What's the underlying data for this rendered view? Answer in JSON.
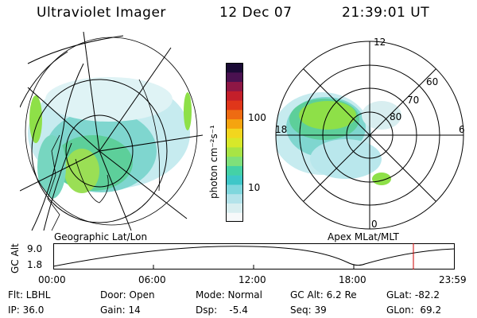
{
  "header": {
    "title": "Ultraviolet Imager",
    "date": "12 Dec 07",
    "time": "21:39:01 UT"
  },
  "geo_panel": {
    "label": "Geographic Lat/Lon"
  },
  "apex_panel": {
    "label": "Apex MLat/MLT",
    "mlt_labels": {
      "top": "12",
      "right": "6",
      "bottom": "0",
      "left": "18"
    },
    "lat_labels": {
      "l60": "60",
      "l70": "70",
      "l80": "80"
    }
  },
  "colorbar": {
    "unit_label": "photon cm⁻²s⁻¹",
    "tick_100": "100",
    "tick_10": "10",
    "colors": [
      "#f7f9fa",
      "#d8eef0",
      "#b3e3ea",
      "#7fd7dd",
      "#3ec7c8",
      "#44d1a6",
      "#7fe07a",
      "#a8e445",
      "#d8e82a",
      "#f2d61e",
      "#f5a40f",
      "#ee6b12",
      "#e0361a",
      "#c41f2a",
      "#8e1745",
      "#4a1150",
      "#1a0a35"
    ]
  },
  "altitude_strip": {
    "ylabel": "GC Alt",
    "ytick_top": "9.0",
    "ytick_bottom": "1.8",
    "xticks": [
      "00:00",
      "06:00",
      "12:00",
      "18:00",
      "23:59"
    ],
    "cursor_color": "#cc0000"
  },
  "info": {
    "row1": [
      {
        "label": "Flt: LBHL"
      },
      {
        "label": "Door: Open"
      },
      {
        "label": "Mode: Normal"
      },
      {
        "label": "GC Alt: 6.2 Re"
      },
      {
        "label": "GLat: -82.2"
      }
    ],
    "row2": [
      {
        "label": "IP: 36.0"
      },
      {
        "label": "Gain: 14"
      },
      {
        "label": "Dsp:    -5.4"
      },
      {
        "label": "Seq: 39"
      },
      {
        "label": "GLon:  69.2"
      }
    ]
  }
}
